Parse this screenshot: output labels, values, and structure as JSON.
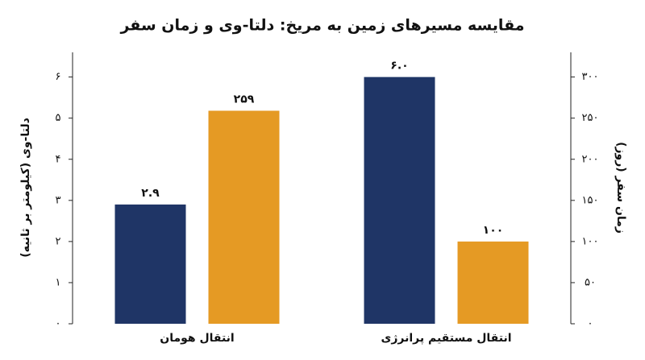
{
  "chart_data": {
    "type": "bar",
    "title": "مقایسه مسیرهای زمین به مریخ: دلتا-وی و زمان سفر",
    "y_label": "دلتا-وی (کیلومتر بر ثانیه)",
    "y2_label": "زمان سفر (روز)",
    "categories": [
      "انتقال هومان",
      "انتقال مستقیم پرانرژی"
    ],
    "series": [
      {
        "name": "دلتا-وی",
        "color": "#1f3566",
        "values": [
          2.9,
          6.0
        ],
        "value_labels": [
          "۲.۹",
          "۶.۰"
        ]
      },
      {
        "name": "زمان سفر",
        "color": "#e59a24",
        "axis": "y2",
        "values": [
          259,
          100
        ],
        "value_labels": [
          "۲۵۹",
          "۱۰۰"
        ]
      }
    ],
    "ylim": [
      0,
      6.6
    ],
    "yticks": [
      {
        "value": 0,
        "label": "۰"
      },
      {
        "value": 1,
        "label": "۱"
      },
      {
        "value": 2,
        "label": "۲"
      },
      {
        "value": 3,
        "label": "۳"
      },
      {
        "value": 4,
        "label": "۴"
      },
      {
        "value": 5,
        "label": "۵"
      },
      {
        "value": 6,
        "label": "۶"
      }
    ],
    "y2lim": [
      0,
      330
    ],
    "y2ticks": [
      {
        "value": 0,
        "label": "۰"
      },
      {
        "value": 50,
        "label": "۵۰"
      },
      {
        "value": 100,
        "label": "۱۰۰"
      },
      {
        "value": 150,
        "label": "۱۵۰"
      },
      {
        "value": 200,
        "label": "۲۰۰"
      },
      {
        "value": 250,
        "label": "۲۵۰"
      },
      {
        "value": 300,
        "label": "۳۰۰"
      }
    ],
    "grid": false
  }
}
